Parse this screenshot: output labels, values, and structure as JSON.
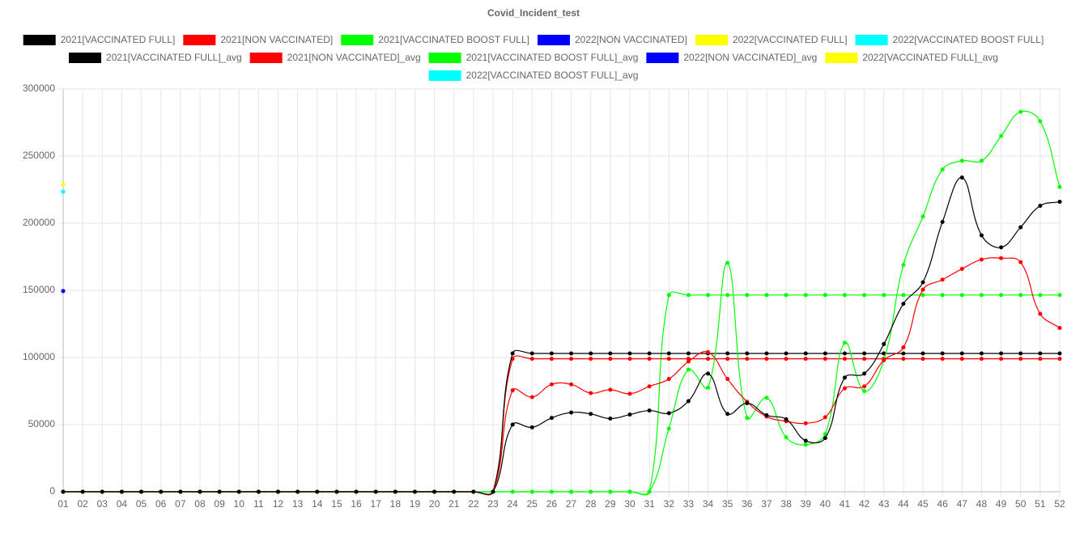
{
  "chart_data": {
    "type": "line",
    "title": "Covid_Incident_test",
    "categories": [
      "01",
      "02",
      "03",
      "04",
      "05",
      "06",
      "07",
      "08",
      "09",
      "10",
      "11",
      "12",
      "13",
      "14",
      "15",
      "16",
      "17",
      "18",
      "19",
      "20",
      "21",
      "22",
      "23",
      "24",
      "25",
      "26",
      "27",
      "28",
      "29",
      "30",
      "31",
      "32",
      "33",
      "34",
      "35",
      "36",
      "37",
      "38",
      "39",
      "40",
      "41",
      "42",
      "43",
      "44",
      "45",
      "46",
      "47",
      "48",
      "49",
      "50",
      "51",
      "52"
    ],
    "ylim": [
      0,
      300000
    ],
    "yticks": [
      0,
      50000,
      100000,
      150000,
      200000,
      250000,
      300000
    ],
    "grid": true,
    "series": [
      {
        "name": "2021[VACCINATED FULL]",
        "color": "#000000",
        "values": [
          0,
          0,
          0,
          0,
          0,
          0,
          0,
          0,
          0,
          0,
          0,
          0,
          0,
          0,
          0,
          0,
          0,
          0,
          0,
          0,
          0,
          0,
          0,
          50000,
          48000,
          55000,
          59000,
          58000,
          54500,
          57500,
          60500,
          58500,
          67500,
          88000,
          58000,
          66000,
          57000,
          54000,
          38000,
          40000,
          85000,
          88000,
          110000,
          140000,
          156000,
          201000,
          234000,
          191000,
          182000,
          197000,
          213000,
          216000
        ]
      },
      {
        "name": "2021[NON VACCINATED]",
        "color": "#ff0000",
        "values": [
          0,
          0,
          0,
          0,
          0,
          0,
          0,
          0,
          0,
          0,
          0,
          0,
          0,
          0,
          0,
          0,
          0,
          0,
          0,
          0,
          0,
          0,
          0,
          75500,
          70500,
          80000,
          80000,
          73500,
          76000,
          73000,
          78500,
          84000,
          97000,
          104000,
          84000,
          67000,
          56000,
          52500,
          51000,
          55500,
          77000,
          78500,
          98000,
          107500,
          150500,
          158000,
          166000,
          173000,
          174000,
          171000,
          132500,
          122000
        ]
      },
      {
        "name": "2021[VACCINATED BOOST FULL]",
        "color": "#00ff00",
        "values": [
          0,
          0,
          0,
          0,
          0,
          0,
          0,
          0,
          0,
          0,
          0,
          0,
          0,
          0,
          0,
          0,
          0,
          0,
          0,
          0,
          0,
          0,
          0,
          0,
          0,
          0,
          0,
          0,
          0,
          0,
          0,
          47000,
          91000,
          77500,
          170500,
          55000,
          70000,
          40500,
          35000,
          43000,
          111000,
          75000,
          98000,
          169000,
          205000,
          240000,
          246500,
          246500,
          265000,
          283000,
          276000,
          227000
        ]
      },
      {
        "name": "2022[NON VACCINATED]",
        "color": "#0000ff",
        "values": [
          149500,
          null,
          null,
          null,
          null,
          null,
          null,
          null,
          null,
          null,
          null,
          null,
          null,
          null,
          null,
          null,
          null,
          null,
          null,
          null,
          null,
          null,
          null,
          null,
          null,
          null,
          null,
          null,
          null,
          null,
          null,
          null,
          null,
          null,
          null,
          null,
          null,
          null,
          null,
          null,
          null,
          null,
          null,
          null,
          null,
          null,
          null,
          null,
          null,
          null,
          null,
          null
        ]
      },
      {
        "name": "2022[VACCINATED FULL]",
        "color": "#ffff00",
        "values": [
          229000,
          null,
          null,
          null,
          null,
          null,
          null,
          null,
          null,
          null,
          null,
          null,
          null,
          null,
          null,
          null,
          null,
          null,
          null,
          null,
          null,
          null,
          null,
          null,
          null,
          null,
          null,
          null,
          null,
          null,
          null,
          null,
          null,
          null,
          null,
          null,
          null,
          null,
          null,
          null,
          null,
          null,
          null,
          null,
          null,
          null,
          null,
          null,
          null,
          null,
          null,
          null
        ]
      },
      {
        "name": "2022[VACCINATED BOOST FULL]",
        "color": "#00ffff",
        "values": [
          223500,
          null,
          null,
          null,
          null,
          null,
          null,
          null,
          null,
          null,
          null,
          null,
          null,
          null,
          null,
          null,
          null,
          null,
          null,
          null,
          null,
          null,
          null,
          null,
          null,
          null,
          null,
          null,
          null,
          null,
          null,
          null,
          null,
          null,
          null,
          null,
          null,
          null,
          null,
          null,
          null,
          null,
          null,
          null,
          null,
          null,
          null,
          null,
          null,
          null,
          null,
          null
        ]
      },
      {
        "name": "2021[VACCINATED FULL]_avg",
        "color": "#000000",
        "values": [
          0,
          0,
          0,
          0,
          0,
          0,
          0,
          0,
          0,
          0,
          0,
          0,
          0,
          0,
          0,
          0,
          0,
          0,
          0,
          0,
          0,
          0,
          0,
          103000,
          103000,
          103000,
          103000,
          103000,
          103000,
          103000,
          103000,
          103000,
          103000,
          103000,
          103000,
          103000,
          103000,
          103000,
          103000,
          103000,
          103000,
          103000,
          103000,
          103000,
          103000,
          103000,
          103000,
          103000,
          103000,
          103000,
          103000,
          103000
        ]
      },
      {
        "name": "2021[NON VACCINATED]_avg",
        "color": "#ff0000",
        "values": [
          0,
          0,
          0,
          0,
          0,
          0,
          0,
          0,
          0,
          0,
          0,
          0,
          0,
          0,
          0,
          0,
          0,
          0,
          0,
          0,
          0,
          0,
          0,
          99000,
          99000,
          99000,
          99000,
          99000,
          99000,
          99000,
          99000,
          99000,
          99000,
          99000,
          99000,
          99000,
          99000,
          99000,
          99000,
          99000,
          99000,
          99000,
          99000,
          99000,
          99000,
          99000,
          99000,
          99000,
          99000,
          99000,
          99000,
          99000
        ]
      },
      {
        "name": "2021[VACCINATED BOOST FULL]_avg",
        "color": "#00ff00",
        "values": [
          0,
          0,
          0,
          0,
          0,
          0,
          0,
          0,
          0,
          0,
          0,
          0,
          0,
          0,
          0,
          0,
          0,
          0,
          0,
          0,
          0,
          0,
          0,
          0,
          0,
          0,
          0,
          0,
          0,
          0,
          0,
          146500,
          146500,
          146500,
          146500,
          146500,
          146500,
          146500,
          146500,
          146500,
          146500,
          146500,
          146500,
          146500,
          146500,
          146500,
          146500,
          146500,
          146500,
          146500,
          146500,
          146500
        ]
      },
      {
        "name": "2022[NON VACCINATED]_avg",
        "color": "#0000ff",
        "values": [
          149500,
          null,
          null,
          null,
          null,
          null,
          null,
          null,
          null,
          null,
          null,
          null,
          null,
          null,
          null,
          null,
          null,
          null,
          null,
          null,
          null,
          null,
          null,
          null,
          null,
          null,
          null,
          null,
          null,
          null,
          null,
          null,
          null,
          null,
          null,
          null,
          null,
          null,
          null,
          null,
          null,
          null,
          null,
          null,
          null,
          null,
          null,
          null,
          null,
          null,
          null,
          null
        ]
      },
      {
        "name": "2022[VACCINATED FULL]_avg",
        "color": "#ffff00",
        "values": [
          229000,
          null,
          null,
          null,
          null,
          null,
          null,
          null,
          null,
          null,
          null,
          null,
          null,
          null,
          null,
          null,
          null,
          null,
          null,
          null,
          null,
          null,
          null,
          null,
          null,
          null,
          null,
          null,
          null,
          null,
          null,
          null,
          null,
          null,
          null,
          null,
          null,
          null,
          null,
          null,
          null,
          null,
          null,
          null,
          null,
          null,
          null,
          null,
          null,
          null,
          null,
          null
        ]
      },
      {
        "name": "2022[VACCINATED BOOST FULL]_avg",
        "color": "#00ffff",
        "values": [
          223500,
          null,
          null,
          null,
          null,
          null,
          null,
          null,
          null,
          null,
          null,
          null,
          null,
          null,
          null,
          null,
          null,
          null,
          null,
          null,
          null,
          null,
          null,
          null,
          null,
          null,
          null,
          null,
          null,
          null,
          null,
          null,
          null,
          null,
          null,
          null,
          null,
          null,
          null,
          null,
          null,
          null,
          null,
          null,
          null,
          null,
          null,
          null,
          null,
          null,
          null,
          null
        ]
      }
    ]
  }
}
